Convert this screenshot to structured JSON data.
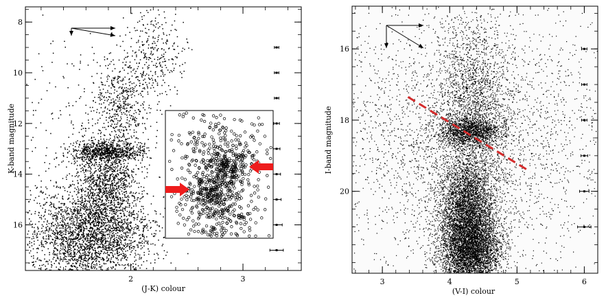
{
  "chart_data": [
    {
      "type": "scatter",
      "title": "",
      "xlabel": "(J-K) colour",
      "ylabel": "K-band magnitude",
      "xlim": [
        1.06,
        3.52
      ],
      "ylim": [
        17.8,
        7.4
      ],
      "y_inverted": true,
      "x_ticks": [
        2,
        3
      ],
      "y_ticks": [
        8,
        10,
        12,
        14,
        16
      ],
      "x_tick_labels": [
        "2",
        "3"
      ],
      "y_tick_labels": [
        "8",
        "10",
        "12",
        "14",
        "16"
      ],
      "series": [
        {
          "kind": "stars",
          "description_role": "dense main population",
          "clumps": [
            {
              "x": 1.62,
              "y": 16.4,
              "sx": 0.28,
              "sy": 0.9,
              "n": 2600
            },
            {
              "x": 1.78,
              "y": 14.3,
              "sx": 0.14,
              "sy": 0.9,
              "n": 1100
            },
            {
              "x": 1.78,
              "y": 13.1,
              "sx": 0.16,
              "sy": 0.18,
              "n": 700
            },
            {
              "x": 1.92,
              "y": 11.2,
              "sx": 0.12,
              "sy": 1.0,
              "n": 500
            },
            {
              "x": 2.22,
              "y": 9.3,
              "sx": 0.13,
              "sy": 0.9,
              "n": 300
            },
            {
              "x": 1.5,
              "y": 12.5,
              "sx": 0.35,
              "sy": 2.0,
              "n": 250
            }
          ]
        }
      ],
      "error_bars": {
        "x": 3.3,
        "points": [
          {
            "y": 9.0,
            "xerr": 0.02
          },
          {
            "y": 10.0,
            "xerr": 0.02
          },
          {
            "y": 11.0,
            "xerr": 0.02
          },
          {
            "y": 12.0,
            "xerr": 0.025
          },
          {
            "y": 13.0,
            "xerr": 0.03
          },
          {
            "y": 14.0,
            "xerr": 0.035
          },
          {
            "y": 15.0,
            "xerr": 0.04
          },
          {
            "y": 16.0,
            "xerr": 0.05
          },
          {
            "y": 17.0,
            "xerr": 0.06
          }
        ]
      },
      "reddening_vectors": true,
      "inset": {
        "type": "scatter",
        "style": "open-circles",
        "arrows_color": "#ee1c1c",
        "arrow_count": 2
      }
    },
    {
      "type": "scatter",
      "title": "",
      "xlabel": "(V-I) colour",
      "ylabel": "I-band magnitude",
      "xlim": [
        2.55,
        6.2
      ],
      "ylim": [
        22.3,
        14.8
      ],
      "y_inverted": true,
      "x_ticks": [
        3,
        4,
        5,
        6
      ],
      "y_ticks": [
        16,
        18,
        20
      ],
      "x_tick_labels": [
        "3",
        "4",
        "5",
        "6"
      ],
      "y_tick_labels": [
        "16",
        "18",
        "20"
      ],
      "series": [
        {
          "kind": "stars",
          "clumps": [
            {
              "x": 4.3,
              "y": 21.6,
              "sx": 0.22,
              "sy": 0.6,
              "n": 9000
            },
            {
              "x": 4.25,
              "y": 20.3,
              "sx": 0.2,
              "sy": 0.6,
              "n": 2600
            },
            {
              "x": 4.3,
              "y": 18.3,
              "sx": 0.22,
              "sy": 0.2,
              "n": 1400
            },
            {
              "x": 4.35,
              "y": 17.5,
              "sx": 0.28,
              "sy": 1.2,
              "n": 1800
            },
            {
              "x": 4.2,
              "y": 18.5,
              "sx": 1.1,
              "sy": 1.9,
              "n": 3500
            }
          ]
        }
      ],
      "dashed_line": {
        "x": [
          3.38,
          5.2
        ],
        "y": [
          17.35,
          19.45
        ],
        "color": "#d42a2a"
      },
      "error_bars": {
        "x": 6.0,
        "points": [
          {
            "y": 16.0,
            "xerr": 0.04
          },
          {
            "y": 17.0,
            "xerr": 0.04
          },
          {
            "y": 18.0,
            "xerr": 0.04
          },
          {
            "y": 19.0,
            "xerr": 0.05
          },
          {
            "y": 20.0,
            "xerr": 0.07
          },
          {
            "y": 21.0,
            "xerr": 0.1
          }
        ]
      },
      "reddening_vectors": true
    }
  ]
}
